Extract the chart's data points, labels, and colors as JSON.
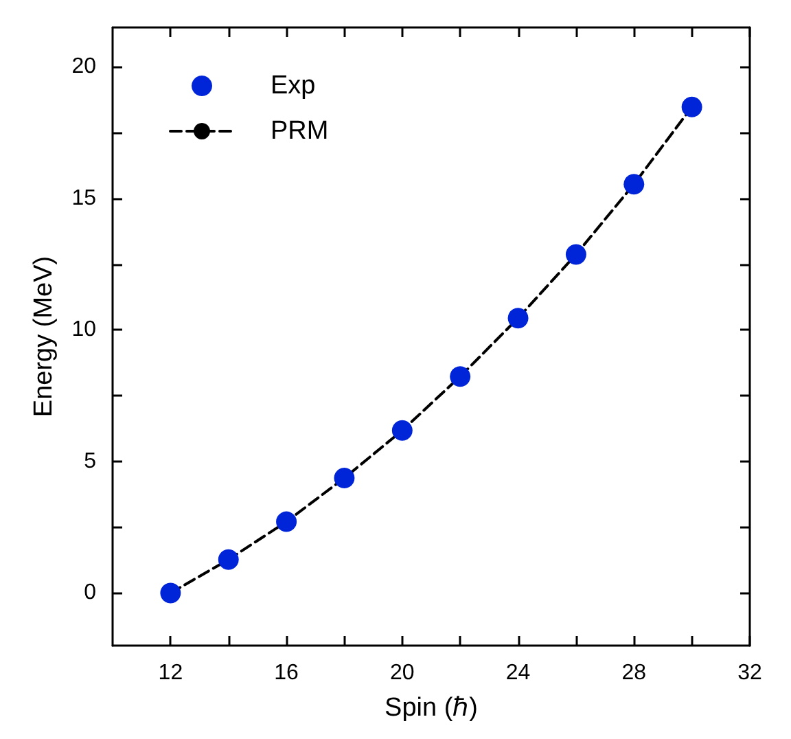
{
  "chart_data": {
    "type": "scatter",
    "xlabel": "Spin (ℏ)",
    "ylabel": "Energy (MeV)",
    "xlim": [
      10,
      32
    ],
    "xticks": [
      12,
      {
        "value": 14,
        "label": null
      },
      16,
      {
        "value": 18,
        "label": null
      },
      20,
      {
        "value": 22,
        "label": null
      },
      24,
      {
        "value": 26,
        "label": null
      },
      28,
      {
        "value": 30,
        "label": null
      },
      32
    ],
    "ylim": [
      -2,
      21.5
    ],
    "yticks": [
      0,
      {
        "value": 2.5,
        "label": null
      },
      5,
      {
        "value": 7.5,
        "label": null
      },
      10,
      {
        "value": 12.5,
        "label": null
      },
      15,
      {
        "value": 17.5,
        "label": null
      },
      20
    ],
    "x": [
      12,
      14,
      16,
      18,
      20,
      22,
      24,
      26,
      28,
      30
    ],
    "series": [
      {
        "name": "Exp",
        "color": "#0024d8",
        "marker": "circle",
        "values": [
          0,
          1.27,
          2.71,
          4.37,
          6.18,
          8.23,
          10.45,
          12.87,
          15.54,
          18.48
        ]
      },
      {
        "name": "PRM",
        "type": "line",
        "color": "#000000",
        "marker": "none",
        "line_style": "dashed",
        "values": [
          0,
          1.27,
          2.71,
          4.37,
          6.18,
          8.23,
          10.45,
          12.87,
          15.54,
          18.48
        ]
      }
    ],
    "legend": "top left",
    "grid": false
  }
}
